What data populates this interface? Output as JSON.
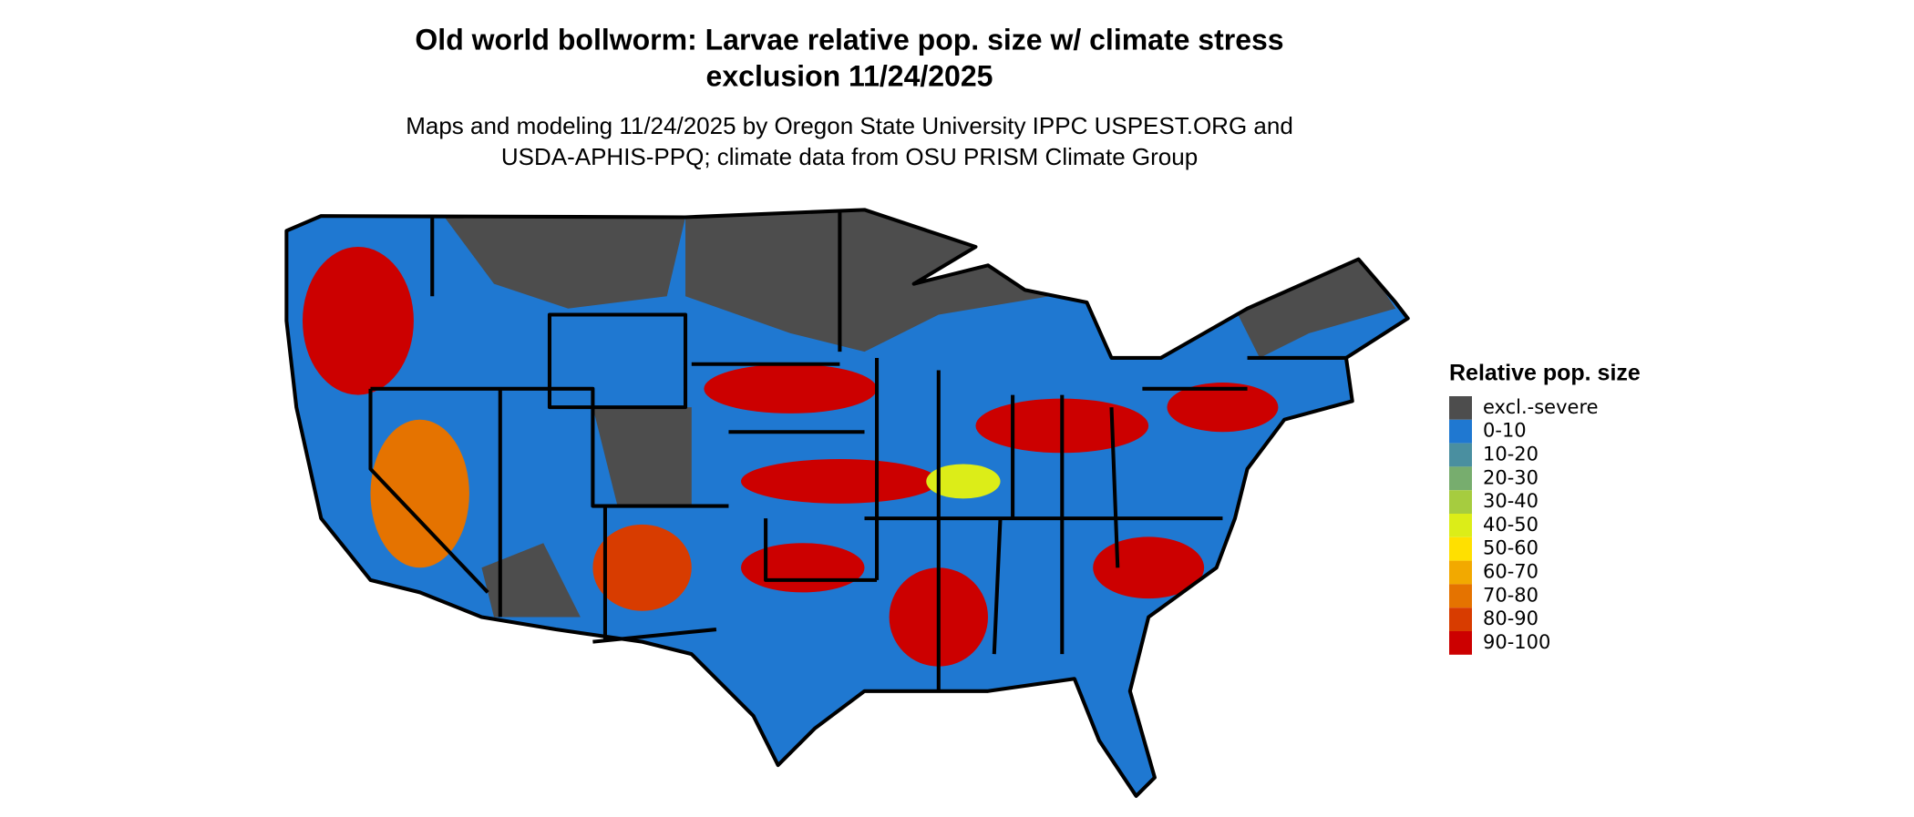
{
  "title_lines": [
    "Old world bollworm: Larvae relative pop. size w/ climate stress",
    "exclusion 11/24/2025"
  ],
  "subtitle_lines": [
    "Maps and modeling 11/24/2025 by Oregon State University IPPC USPEST.ORG and",
    "USDA-APHIS-PPQ; climate data from OSU PRISM Climate Group"
  ],
  "legend": {
    "title": "Relative pop. size",
    "items": [
      {
        "label": "excl.-severe",
        "color": "#4d4d4d"
      },
      {
        "label": "0-10",
        "color": "#1f78d1"
      },
      {
        "label": "10-20",
        "color": "#4a8fa0"
      },
      {
        "label": "20-30",
        "color": "#77ad6e"
      },
      {
        "label": "30-40",
        "color": "#a6cc3f"
      },
      {
        "label": "40-50",
        "color": "#dced18"
      },
      {
        "label": "50-60",
        "color": "#ffe000"
      },
      {
        "label": "60-70",
        "color": "#f2a900"
      },
      {
        "label": "70-80",
        "color": "#e57300"
      },
      {
        "label": "80-90",
        "color": "#d83c00"
      },
      {
        "label": "90-100",
        "color": "#cc0000"
      }
    ]
  }
}
